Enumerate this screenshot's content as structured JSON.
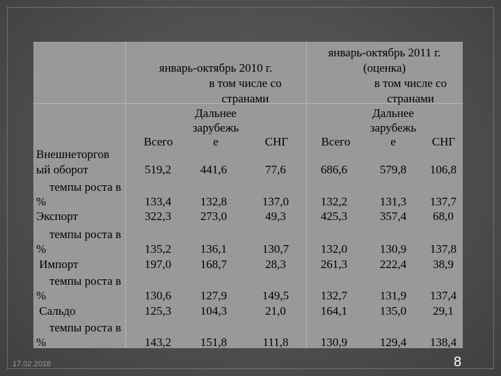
{
  "header": {
    "period2010": "январь-октябрь 2010 г.",
    "period2011_line1": "январь-октябрь 2011 г.",
    "period2011_line2": "(оценка)",
    "incl_line1": "в том числе со",
    "incl_line2": "странами",
    "far_line1": "Дальнее",
    "far_line2": "зарубежь",
    "far_line3": "е",
    "total": "Всего",
    "cis": "СНГ"
  },
  "rows": [
    {
      "label": [
        "Внешнеторгов",
        "ый оборот"
      ],
      "values": [
        "519,2",
        "441,6",
        "77,6",
        "686,6",
        "579,8",
        "106,8"
      ]
    },
    {
      "label": [
        "темпы роста в",
        "%"
      ],
      "values": [
        "133,4",
        "132,8",
        "137,0",
        "132,2",
        "131,3",
        "137,7"
      ]
    },
    {
      "label": [
        "Экспорт"
      ],
      "values": [
        "322,3",
        "273,0",
        "49,3",
        "425,3",
        "357,4",
        "68,0"
      ]
    },
    {
      "label": [
        "темпы роста в",
        "%"
      ],
      "values": [
        "135,2",
        "136,1",
        "130,7",
        "132,0",
        "130,9",
        "137,8"
      ]
    },
    {
      "label": [
        " Импорт"
      ],
      "values": [
        "197,0",
        "168,7",
        "28,3",
        "261,3",
        "222,4",
        "38,9"
      ]
    },
    {
      "label": [
        "темпы роста в",
        "%"
      ],
      "values": [
        "130,6",
        "127,9",
        "149,5",
        "132,7",
        "131,9",
        "137,4"
      ]
    },
    {
      "label": [
        " Сальдо"
      ],
      "values": [
        "125,3",
        "104,3",
        "21,0",
        "164,1",
        "135,0",
        "29,1"
      ]
    },
    {
      "label": [
        "темпы роста в",
        "%"
      ],
      "values": [
        "143,2",
        "151,8",
        "111,8",
        "130,9",
        "129,4",
        "138,4"
      ]
    }
  ],
  "footer": {
    "date": "17.02.2018",
    "page": "8"
  },
  "colors": {
    "background": "#4f4f4f",
    "table": "#999999",
    "page_number": "#ffffff"
  }
}
